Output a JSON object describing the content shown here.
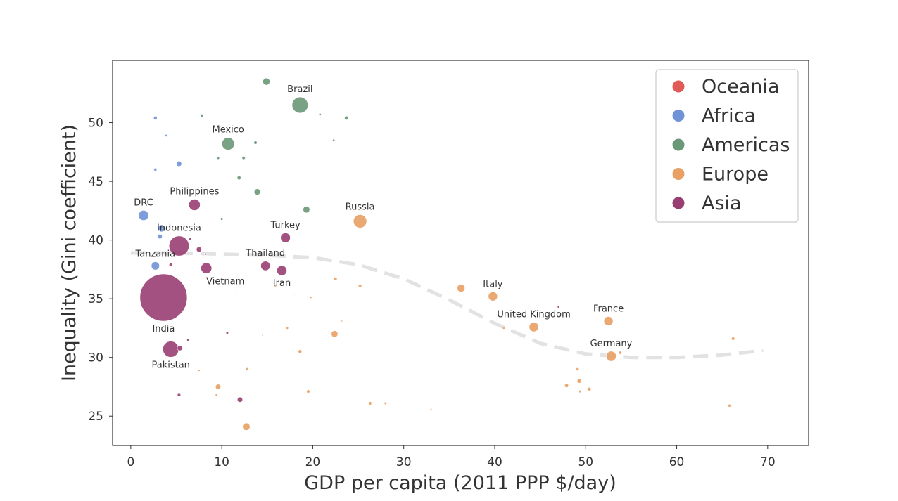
{
  "chart_data": {
    "type": "scatter",
    "title": "",
    "xlabel": "GDP per capita (2011 PPP $/day)",
    "ylabel": "Inequality (Gini coefficient)",
    "xlim": [
      -2,
      74.5
    ],
    "ylim": [
      22.5,
      55.3
    ],
    "xticks": [
      0,
      10,
      20,
      30,
      40,
      50,
      60,
      70
    ],
    "yticks": [
      25,
      30,
      35,
      40,
      45,
      50
    ],
    "grid": false,
    "legend_placement": "top-right",
    "legend": [
      {
        "name": "Oceania",
        "color": "#e05a57"
      },
      {
        "name": "Africa",
        "color": "#6f93d6"
      },
      {
        "name": "Americas",
        "color": "#6a9878"
      },
      {
        "name": "Europe",
        "color": "#e8a064"
      },
      {
        "name": "Asia",
        "color": "#993e72"
      }
    ],
    "trend": {
      "style": "dashed",
      "color": "#e2e2e2",
      "x": [
        0,
        5,
        10,
        15,
        20,
        25,
        30,
        35,
        40,
        45,
        50,
        55,
        60,
        65,
        69.5
      ],
      "y": [
        38.9,
        38.9,
        38.8,
        38.7,
        38.5,
        37.9,
        36.7,
        34.9,
        32.9,
        31.2,
        30.3,
        30.0,
        30.0,
        30.2,
        30.6
      ]
    },
    "series": [
      {
        "name": "Africa",
        "color": "#6f93d6",
        "points": [
          {
            "x": 1.4,
            "y": 42.1,
            "size": 90,
            "label": "DRC"
          },
          {
            "x": 2.7,
            "y": 37.8,
            "size": 60,
            "label": "Tanzania"
          },
          {
            "x": 3.4,
            "y": 41.0,
            "size": 45
          },
          {
            "x": 3.2,
            "y": 40.3,
            "size": 20
          },
          {
            "x": 5.3,
            "y": 46.5,
            "size": 25
          },
          {
            "x": 2.7,
            "y": 50.4,
            "size": 12
          },
          {
            "x": 2.7,
            "y": 46.0,
            "size": 8
          },
          {
            "x": 3.9,
            "y": 48.9,
            "size": 5
          }
        ]
      },
      {
        "name": "Americas",
        "color": "#6a9878",
        "points": [
          {
            "x": 18.6,
            "y": 51.5,
            "size": 230,
            "label": "Brazil"
          },
          {
            "x": 10.7,
            "y": 48.2,
            "size": 140,
            "label": "Mexico"
          },
          {
            "x": 14.9,
            "y": 53.5,
            "size": 45
          },
          {
            "x": 19.3,
            "y": 42.6,
            "size": 40
          },
          {
            "x": 13.9,
            "y": 44.1,
            "size": 35
          },
          {
            "x": 23.7,
            "y": 50.4,
            "size": 14
          },
          {
            "x": 11.9,
            "y": 45.3,
            "size": 14
          },
          {
            "x": 13.7,
            "y": 48.3,
            "size": 10
          },
          {
            "x": 12.4,
            "y": 47.0,
            "size": 10
          },
          {
            "x": 7.8,
            "y": 50.6,
            "size": 8
          },
          {
            "x": 9.6,
            "y": 47.0,
            "size": 7
          },
          {
            "x": 10.0,
            "y": 41.8,
            "size": 6
          },
          {
            "x": 22.3,
            "y": 48.5,
            "size": 5
          },
          {
            "x": 20.8,
            "y": 50.7,
            "size": 5
          }
        ]
      },
      {
        "name": "Europe",
        "color": "#e8a064",
        "points": [
          {
            "x": 25.2,
            "y": 41.6,
            "size": 160,
            "label": "Russia"
          },
          {
            "x": 52.8,
            "y": 30.1,
            "size": 90,
            "label": "Germany"
          },
          {
            "x": 44.3,
            "y": 32.6,
            "size": 80,
            "label": "United Kingdom"
          },
          {
            "x": 52.5,
            "y": 33.1,
            "size": 75,
            "label": "France"
          },
          {
            "x": 39.8,
            "y": 35.2,
            "size": 75,
            "label": "Italy"
          },
          {
            "x": 36.3,
            "y": 35.9,
            "size": 55
          },
          {
            "x": 12.7,
            "y": 24.1,
            "size": 50
          },
          {
            "x": 22.4,
            "y": 32.0,
            "size": 40
          },
          {
            "x": 9.6,
            "y": 27.5,
            "size": 25
          },
          {
            "x": 49.3,
            "y": 28.0,
            "size": 18
          },
          {
            "x": 47.9,
            "y": 27.6,
            "size": 14
          },
          {
            "x": 50.4,
            "y": 27.3,
            "size": 12
          },
          {
            "x": 18.6,
            "y": 30.5,
            "size": 12
          },
          {
            "x": 19.5,
            "y": 27.1,
            "size": 10
          },
          {
            "x": 26.3,
            "y": 26.1,
            "size": 10
          },
          {
            "x": 66.2,
            "y": 31.6,
            "size": 10
          },
          {
            "x": 22.5,
            "y": 36.7,
            "size": 10
          },
          {
            "x": 25.2,
            "y": 36.1,
            "size": 10
          },
          {
            "x": 53.8,
            "y": 30.4,
            "size": 8
          },
          {
            "x": 49.1,
            "y": 29.0,
            "size": 8
          },
          {
            "x": 12.8,
            "y": 29.0,
            "size": 8
          },
          {
            "x": 65.8,
            "y": 25.9,
            "size": 7
          },
          {
            "x": 28.0,
            "y": 26.1,
            "size": 6
          },
          {
            "x": 49.4,
            "y": 27.1,
            "size": 6
          },
          {
            "x": 17.2,
            "y": 32.5,
            "size": 5
          },
          {
            "x": 41.0,
            "y": 32.5,
            "size": 5
          },
          {
            "x": 7.5,
            "y": 28.9,
            "size": 4
          },
          {
            "x": 9.4,
            "y": 26.8,
            "size": 4
          },
          {
            "x": 15.9,
            "y": 36.1,
            "size": 4
          },
          {
            "x": 19.8,
            "y": 35.1,
            "size": 3
          },
          {
            "x": 33.0,
            "y": 25.6,
            "size": 3
          },
          {
            "x": 18.0,
            "y": 35.4,
            "size": 2
          },
          {
            "x": 11.6,
            "y": 35.8,
            "size": 2
          },
          {
            "x": 23.2,
            "y": 33.1,
            "size": 2
          }
        ]
      },
      {
        "name": "Asia",
        "color": "#993e72",
        "points": [
          {
            "x": 3.6,
            "y": 35.1,
            "size": 2000,
            "label": "India"
          },
          {
            "x": 5.3,
            "y": 39.5,
            "size": 360,
            "label": "Indonesia"
          },
          {
            "x": 4.4,
            "y": 30.7,
            "size": 230,
            "label": "Pakistan"
          },
          {
            "x": 7.0,
            "y": 43.0,
            "size": 115,
            "label": "Philippines"
          },
          {
            "x": 8.3,
            "y": 37.6,
            "size": 105,
            "label": "Vietnam"
          },
          {
            "x": 17.0,
            "y": 40.2,
            "size": 85,
            "label": "Turkey"
          },
          {
            "x": 14.8,
            "y": 37.8,
            "size": 80,
            "label": "Thailand"
          },
          {
            "x": 16.6,
            "y": 37.4,
            "size": 90,
            "label": "Iran"
          },
          {
            "x": 7.5,
            "y": 39.2,
            "size": 25
          },
          {
            "x": 12.0,
            "y": 26.4,
            "size": 25
          },
          {
            "x": 5.4,
            "y": 30.8,
            "size": 25
          },
          {
            "x": 4.4,
            "y": 37.9,
            "size": 10
          },
          {
            "x": 5.3,
            "y": 26.8,
            "size": 10
          },
          {
            "x": 6.5,
            "y": 40.1,
            "size": 6
          },
          {
            "x": 6.3,
            "y": 31.5,
            "size": 6
          },
          {
            "x": 10.6,
            "y": 32.1,
            "size": 6
          },
          {
            "x": 8.2,
            "y": 38.8,
            "size": 4
          },
          {
            "x": 47.0,
            "y": 34.3,
            "size": 4
          },
          {
            "x": 14.5,
            "y": 31.9,
            "size": 2
          }
        ]
      }
    ]
  }
}
